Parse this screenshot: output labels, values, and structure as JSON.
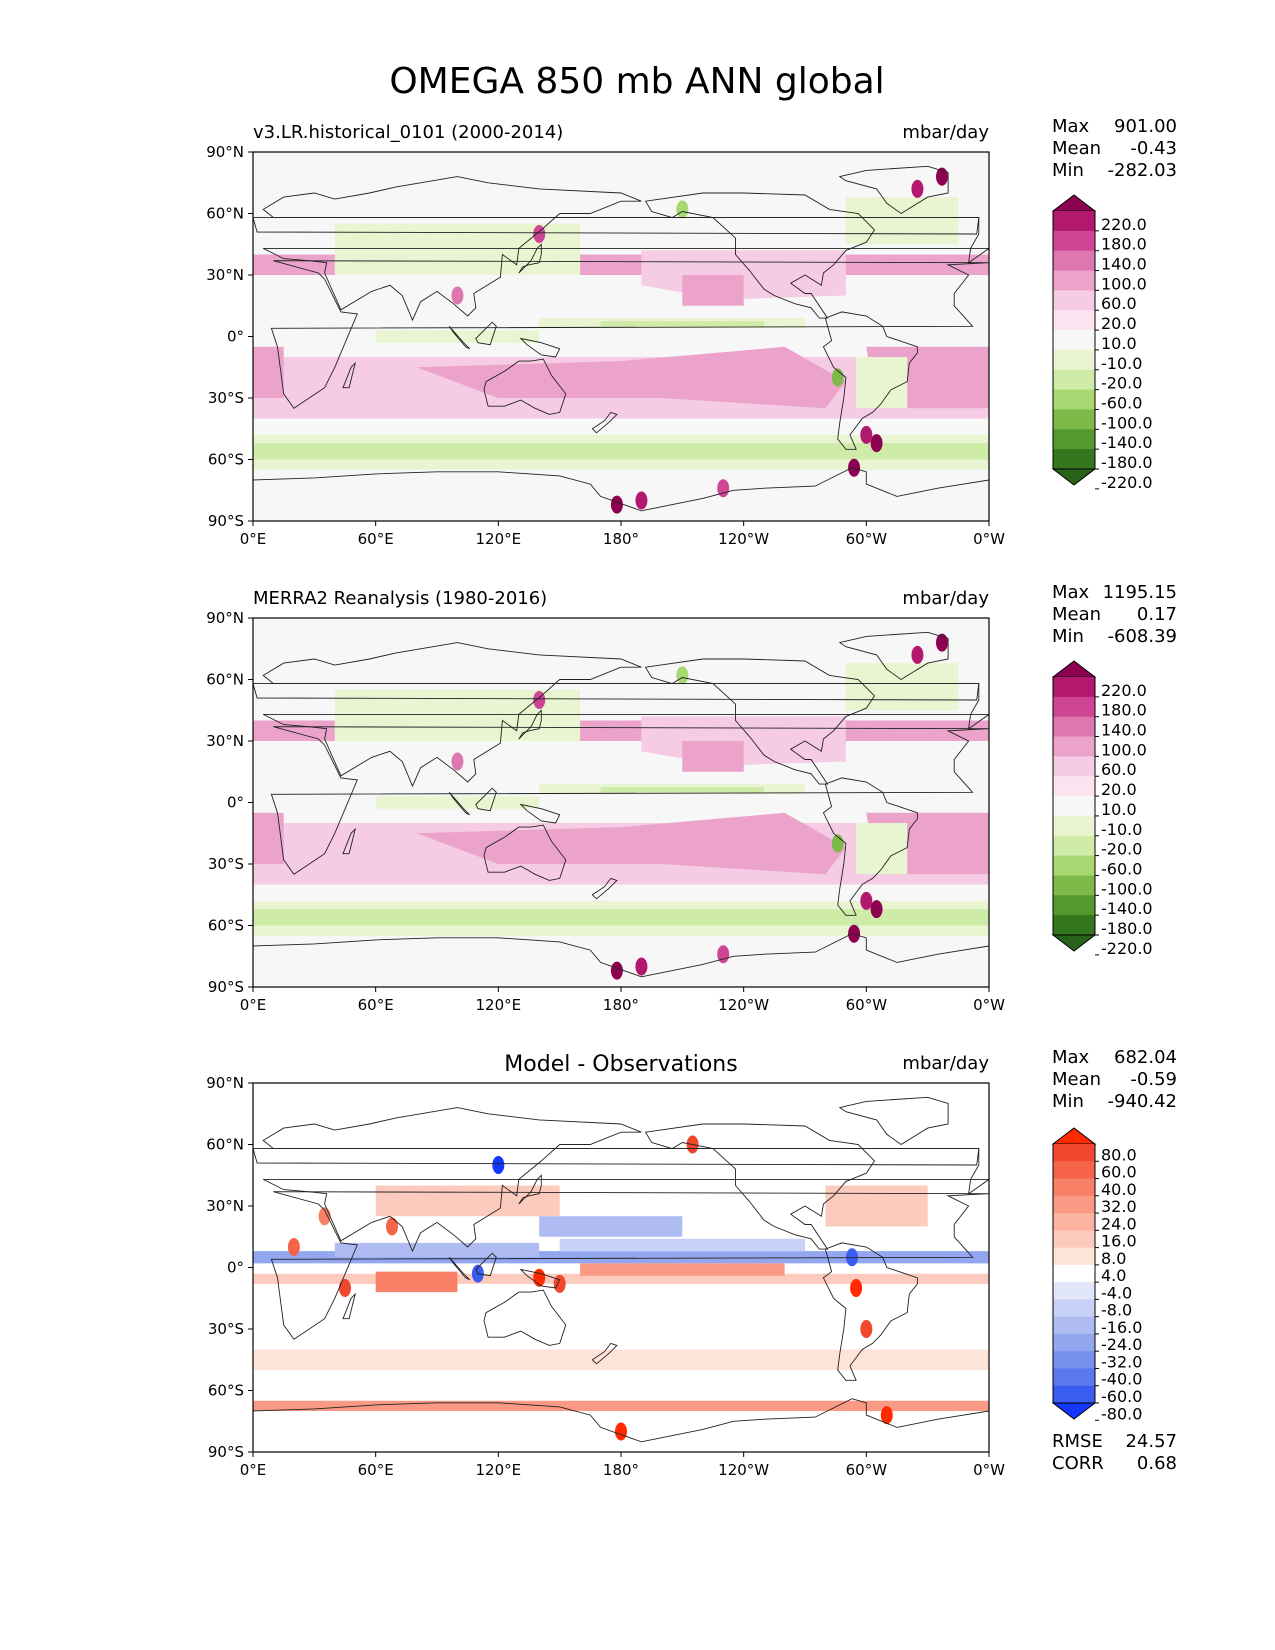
{
  "suptitle": "OMEGA 850 mb ANN global",
  "panels": [
    {
      "left_title": "v3.LR.historical_0101 (2000-2014)",
      "center_title": "",
      "units": "mbar/day",
      "stats": [
        {
          "label": "Max",
          "value": "901.00"
        },
        {
          "label": "Mean",
          "value": "-0.43"
        },
        {
          "label": "Min",
          "value": "-282.03"
        }
      ],
      "colorbar": "field",
      "extra_stats": []
    },
    {
      "left_title": "MERRA2 Reanalysis (1980-2016)",
      "center_title": "",
      "units": "mbar/day",
      "stats": [
        {
          "label": "Max",
          "value": "1195.15"
        },
        {
          "label": "Mean",
          "value": "0.17"
        },
        {
          "label": "Min",
          "value": "-608.39"
        }
      ],
      "colorbar": "field",
      "extra_stats": []
    },
    {
      "left_title": "",
      "center_title": "Model - Observations",
      "units": "mbar/day",
      "stats": [
        {
          "label": "Max",
          "value": "682.04"
        },
        {
          "label": "Mean",
          "value": "-0.59"
        },
        {
          "label": "Min",
          "value": "-940.42"
        }
      ],
      "colorbar": "diff",
      "extra_stats": [
        {
          "label": "RMSE",
          "value": "24.57"
        },
        {
          "label": "CORR",
          "value": "0.68"
        }
      ]
    }
  ],
  "axes": {
    "x_ticks": [
      "0°E",
      "60°E",
      "120°E",
      "180°",
      "120°W",
      "60°W",
      "0°W"
    ],
    "y_ticks": [
      "90°N",
      "60°N",
      "30°N",
      "0°",
      "30°S",
      "60°S",
      "90°S"
    ]
  },
  "colorbars": {
    "field": {
      "labels": [
        "220.0",
        "180.0",
        "140.0",
        "100.0",
        "60.0",
        "20.0",
        "10.0",
        "-10.0",
        "-20.0",
        "-60.0",
        "-100.0",
        "-140.0",
        "-180.0",
        "-220.0"
      ],
      "colors": [
        "#8e0152",
        "#b3186f",
        "#cf4596",
        "#de77ae",
        "#eba3cc",
        "#f6cbe4",
        "#fbe4f0",
        "#f7f7f7",
        "#e8f5d0",
        "#cfeba8",
        "#a8d872",
        "#7dba4a",
        "#55982e",
        "#34761d",
        "#276419"
      ]
    },
    "diff": {
      "labels": [
        "80.0",
        "60.0",
        "40.0",
        "32.0",
        "24.0",
        "16.0",
        "8.0",
        "4.0",
        "-4.0",
        "-8.0",
        "-16.0",
        "-24.0",
        "-32.0",
        "-40.0",
        "-60.0",
        "-80.0"
      ],
      "colors": [
        "#ff2a00",
        "#f0472e",
        "#f56448",
        "#f88066",
        "#fa9a84",
        "#fcb3a0",
        "#fdcbbd",
        "#fee3d9",
        "#ffffff",
        "#e1e6fb",
        "#c8d1f7",
        "#aebcf3",
        "#93a6f0",
        "#7890ee",
        "#5b78ee",
        "#3a5cf1",
        "#1436ff"
      ]
    }
  },
  "chart_data": [
    {
      "type": "heatmap",
      "title": "v3.LR.historical_0101 (2000-2014)",
      "units": "mbar/day",
      "xlim": [
        0,
        360
      ],
      "ylim": [
        -90,
        90
      ],
      "levels": [
        -220,
        -180,
        -140,
        -100,
        -60,
        -20,
        -10,
        10,
        20,
        60,
        100,
        140,
        180,
        220
      ],
      "stats": {
        "max": 901.0,
        "mean": -0.43,
        "min": -282.03
      }
    },
    {
      "type": "heatmap",
      "title": "MERRA2 Reanalysis (1980-2016)",
      "units": "mbar/day",
      "xlim": [
        0,
        360
      ],
      "ylim": [
        -90,
        90
      ],
      "levels": [
        -220,
        -180,
        -140,
        -100,
        -60,
        -20,
        -10,
        10,
        20,
        60,
        100,
        140,
        180,
        220
      ],
      "stats": {
        "max": 1195.15,
        "mean": 0.17,
        "min": -608.39
      }
    },
    {
      "type": "heatmap",
      "title": "Model - Observations",
      "units": "mbar/day",
      "xlim": [
        0,
        360
      ],
      "ylim": [
        -90,
        90
      ],
      "levels": [
        -80,
        -60,
        -40,
        -32,
        -24,
        -16,
        -8,
        -4,
        4,
        8,
        16,
        24,
        32,
        40,
        60,
        80
      ],
      "stats": {
        "max": 682.04,
        "mean": -0.59,
        "min": -940.42,
        "rmse": 24.57,
        "corr": 0.68
      }
    }
  ]
}
